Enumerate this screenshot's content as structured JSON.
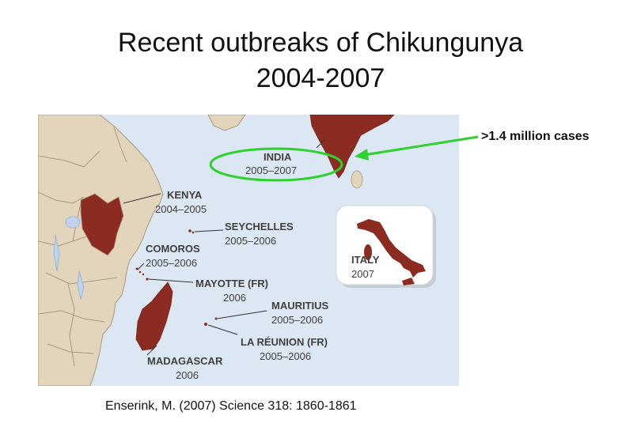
{
  "slide": {
    "title_line1": "Recent outbreaks of Chikungunya",
    "title_line2": "2004-2007",
    "callout": ">1.4 million cases",
    "citation": "Enserink, M. (2007) Science 318: 1860-1861"
  },
  "map": {
    "colors": {
      "ocean": "#dbe7f3",
      "land": "#e3d5bb",
      "border": "#a7987d",
      "outbreak": "#8c2b21",
      "highlight": "#2fd12f",
      "leader": "#333333"
    },
    "outbreaks": [
      {
        "name": "INDIA",
        "years": "2005–2007"
      },
      {
        "name": "KENYA",
        "years": "2004–2005"
      },
      {
        "name": "SEYCHELLES",
        "years": "2005–2006"
      },
      {
        "name": "COMOROS",
        "years": "2005–2006"
      },
      {
        "name": "MAYOTTE (FR)",
        "years": "2006"
      },
      {
        "name": "MAURITIUS",
        "years": "2005–2006"
      },
      {
        "name": "LA RÉUNION (FR)",
        "years": "2005–2006"
      },
      {
        "name": "MADAGASCAR",
        "years": "2006"
      }
    ],
    "inset": {
      "name": "ITALY",
      "years": "2007"
    }
  }
}
